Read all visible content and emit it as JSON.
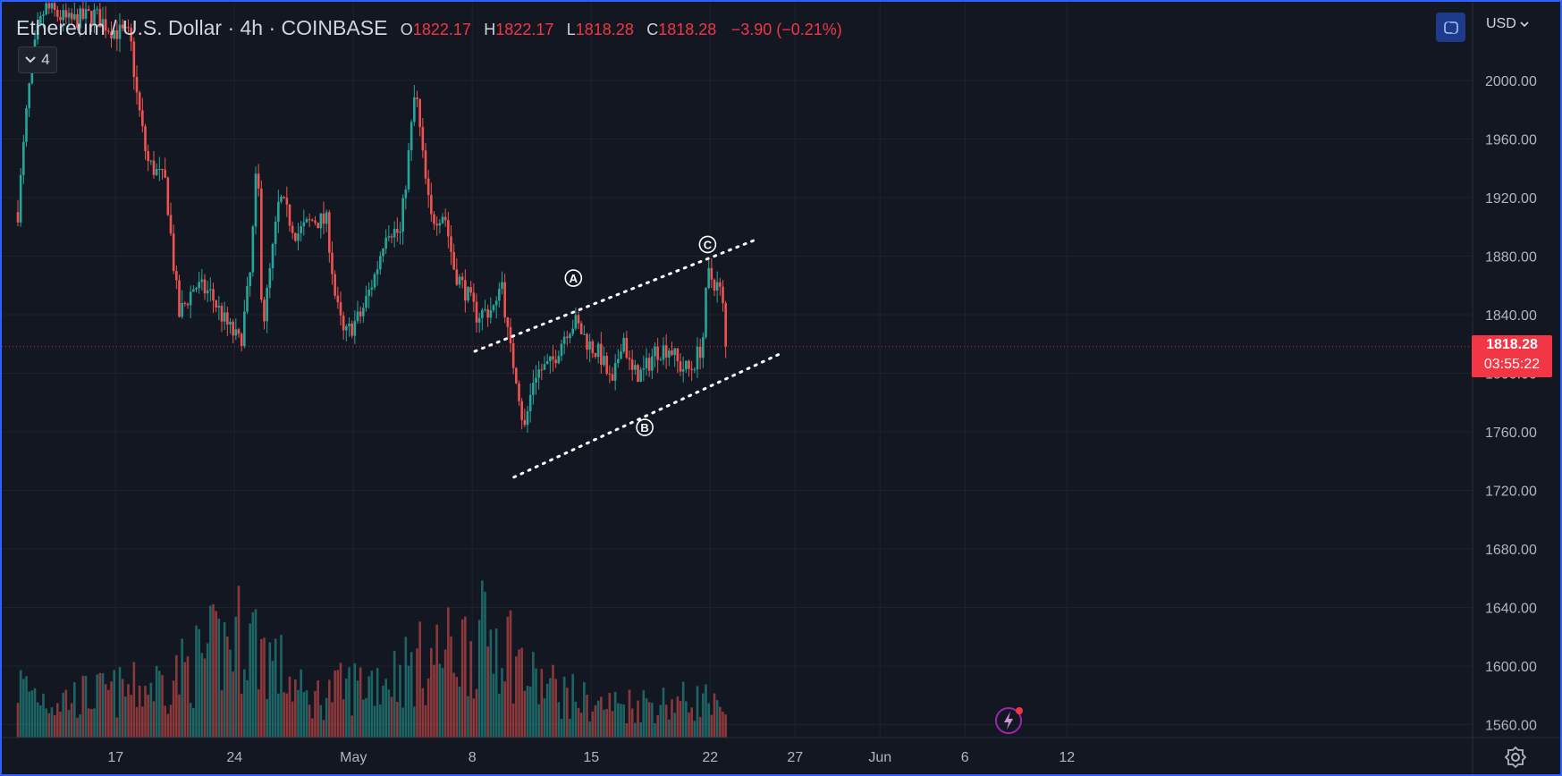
{
  "header": {
    "symbol": "Ethereum / U.S. Dollar · 4h · COINBASE",
    "o_label": "O",
    "o_value": "1822.17",
    "h_label": "H",
    "h_value": "1822.17",
    "l_label": "L",
    "l_value": "1818.28",
    "c_label": "C",
    "c_value": "1818.28",
    "change": "−3.90 (−0.21%)"
  },
  "indicator_toggle": {
    "count": "4"
  },
  "currency": "USD",
  "price_tag": {
    "price": "1818.28",
    "countdown": "03:55:22"
  },
  "colors": {
    "up": "#26a69a",
    "down": "#ef5350",
    "background": "#131722",
    "grid": "#1e222d",
    "text": "#b2b5be"
  },
  "icons": [
    "fullscreen-icon",
    "chevron-down-icon",
    "gear-icon",
    "lightning-icon"
  ],
  "chart_data": {
    "type": "candlestick",
    "series_name": "Ethereum / U.S. Dollar",
    "interval": "4h",
    "y_axis": {
      "ticks": [
        2000,
        1960,
        1920,
        1880,
        1840,
        1800,
        1760,
        1720,
        1680,
        1640,
        1600,
        1560
      ],
      "tick_labels": [
        "2000.00",
        "1960.00",
        "1920.00",
        "1880.00",
        "1840.00",
        "1800.00",
        "1760.00",
        "1720.00",
        "1680.00",
        "1640.00",
        "1600.00",
        "1560.00"
      ]
    },
    "x_axis": {
      "ticks": [
        {
          "label": "17",
          "t": 5.75
        },
        {
          "label": "24",
          "t": 12.75
        },
        {
          "label": "May",
          "t": 19.75
        },
        {
          "label": "8",
          "t": 26.75
        },
        {
          "label": "15",
          "t": 33.75
        },
        {
          "label": "22",
          "t": 40.75
        },
        {
          "label": "27",
          "t": 45.75
        },
        {
          "label": "Jun",
          "t": 50.75
        },
        {
          "label": "6",
          "t": 55.75
        },
        {
          "label": "12",
          "t": 61.75
        }
      ]
    },
    "current_price": 1818.28,
    "grid": true,
    "channel_lines": [
      {
        "t1": 26.9,
        "p1": 1815,
        "t2": 43.6,
        "p2": 1892
      },
      {
        "t1": 29.2,
        "p1": 1729,
        "t2": 45.0,
        "p2": 1814
      }
    ],
    "wave_labels": [
      {
        "text": "A",
        "t": 32.7,
        "p": 1865
      },
      {
        "text": "B",
        "t": 36.9,
        "p": 1763
      },
      {
        "text": "C",
        "t": 40.6,
        "p": 1888
      }
    ],
    "price_anchors": [
      {
        "t": 0.0,
        "p": 1910
      },
      {
        "t": 0.6,
        "p": 1990
      },
      {
        "t": 1.1,
        "p": 2030
      },
      {
        "t": 1.6,
        "p": 2050
      },
      {
        "t": 3.0,
        "p": 2040
      },
      {
        "t": 4.5,
        "p": 2045
      },
      {
        "t": 5.5,
        "p": 2035
      },
      {
        "t": 6.6,
        "p": 2030
      },
      {
        "t": 7.0,
        "p": 1990
      },
      {
        "t": 7.6,
        "p": 1945
      },
      {
        "t": 8.7,
        "p": 1930
      },
      {
        "t": 9.2,
        "p": 1870
      },
      {
        "t": 9.5,
        "p": 1840
      },
      {
        "t": 10.4,
        "p": 1860
      },
      {
        "t": 11.3,
        "p": 1855
      },
      {
        "t": 12.2,
        "p": 1835
      },
      {
        "t": 13.1,
        "p": 1820
      },
      {
        "t": 13.7,
        "p": 1870
      },
      {
        "t": 14.1,
        "p": 1950
      },
      {
        "t": 14.4,
        "p": 1830
      },
      {
        "t": 15.4,
        "p": 1920
      },
      {
        "t": 16.4,
        "p": 1895
      },
      {
        "t": 17.4,
        "p": 1905
      },
      {
        "t": 18.2,
        "p": 1903
      },
      {
        "t": 18.7,
        "p": 1850
      },
      {
        "t": 19.2,
        "p": 1825
      },
      {
        "t": 20.2,
        "p": 1840
      },
      {
        "t": 21.1,
        "p": 1870
      },
      {
        "t": 21.7,
        "p": 1900
      },
      {
        "t": 22.5,
        "p": 1895
      },
      {
        "t": 23.1,
        "p": 1960
      },
      {
        "t": 23.4,
        "p": 1995
      },
      {
        "t": 23.9,
        "p": 1940
      },
      {
        "t": 24.3,
        "p": 1905
      },
      {
        "t": 25.1,
        "p": 1910
      },
      {
        "t": 25.7,
        "p": 1870
      },
      {
        "t": 26.4,
        "p": 1855
      },
      {
        "t": 27.0,
        "p": 1840
      },
      {
        "t": 28.2,
        "p": 1845
      },
      {
        "t": 28.4,
        "p": 1872
      },
      {
        "t": 28.9,
        "p": 1820
      },
      {
        "t": 29.4,
        "p": 1795
      },
      {
        "t": 29.8,
        "p": 1760
      },
      {
        "t": 30.4,
        "p": 1800
      },
      {
        "t": 31.4,
        "p": 1806
      },
      {
        "t": 32.3,
        "p": 1830
      },
      {
        "t": 32.8,
        "p": 1835
      },
      {
        "t": 33.6,
        "p": 1820
      },
      {
        "t": 34.3,
        "p": 1812
      },
      {
        "t": 35.0,
        "p": 1790
      },
      {
        "t": 35.6,
        "p": 1828
      },
      {
        "t": 36.1,
        "p": 1800
      },
      {
        "t": 36.8,
        "p": 1800
      },
      {
        "t": 37.5,
        "p": 1815
      },
      {
        "t": 38.4,
        "p": 1818
      },
      {
        "t": 38.9,
        "p": 1805
      },
      {
        "t": 39.6,
        "p": 1802
      },
      {
        "t": 40.3,
        "p": 1820
      },
      {
        "t": 40.6,
        "p": 1868
      },
      {
        "t": 41.3,
        "p": 1858
      },
      {
        "t": 41.6,
        "p": 1838
      },
      {
        "t": 41.8,
        "p": 1818
      }
    ],
    "volume_profile": [
      {
        "t": 0.0,
        "v": 0.5
      },
      {
        "t": 2.0,
        "v": 0.35
      },
      {
        "t": 7.0,
        "v": 0.45
      },
      {
        "t": 9.0,
        "v": 0.55
      },
      {
        "t": 13.5,
        "v": 1.0
      },
      {
        "t": 17.0,
        "v": 0.35
      },
      {
        "t": 23.0,
        "v": 0.65
      },
      {
        "t": 28.5,
        "v": 1.0
      },
      {
        "t": 30.0,
        "v": 0.55
      },
      {
        "t": 34.0,
        "v": 0.3
      },
      {
        "t": 40.5,
        "v": 0.35
      },
      {
        "t": 41.8,
        "v": 0.15
      }
    ]
  }
}
